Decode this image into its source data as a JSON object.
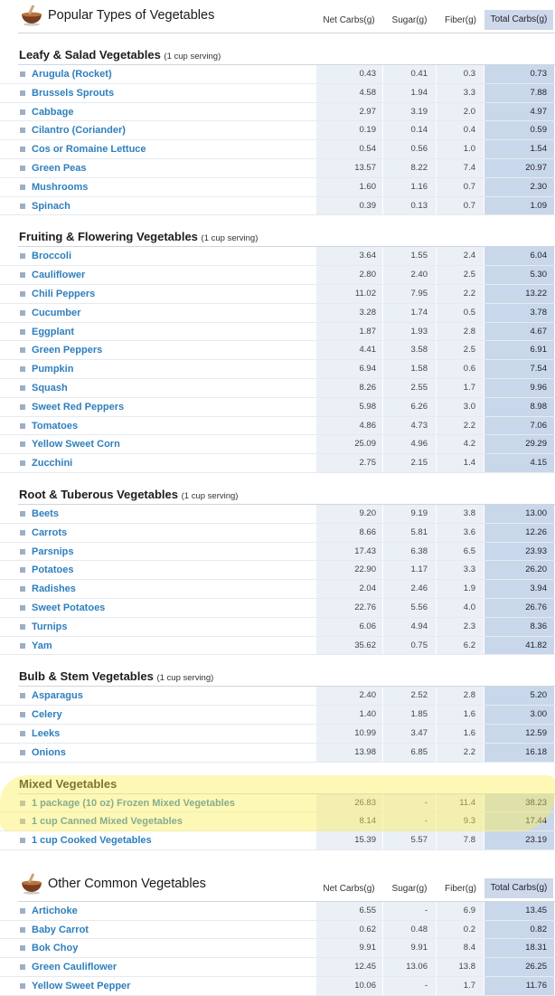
{
  "tables": [
    {
      "title": "Popular Types of Vegetables",
      "columns": [
        "Net Carbs(g)",
        "Sugar(g)",
        "Fiber(g)",
        "Total Carbs(g)"
      ],
      "sections": [
        {
          "title": "Leafy & Salad Vegetables",
          "subtitle": "(1 cup serving)",
          "rows": [
            {
              "name": "Arugula (Rocket)",
              "net": "0.43",
              "sugar": "0.41",
              "fiber": "0.3",
              "total": "0.73"
            },
            {
              "name": "Brussels Sprouts",
              "net": "4.58",
              "sugar": "1.94",
              "fiber": "3.3",
              "total": "7.88"
            },
            {
              "name": "Cabbage",
              "net": "2.97",
              "sugar": "3.19",
              "fiber": "2.0",
              "total": "4.97"
            },
            {
              "name": "Cilantro (Coriander)",
              "net": "0.19",
              "sugar": "0.14",
              "fiber": "0.4",
              "total": "0.59"
            },
            {
              "name": "Cos or Romaine Lettuce",
              "net": "0.54",
              "sugar": "0.56",
              "fiber": "1.0",
              "total": "1.54"
            },
            {
              "name": "Green Peas",
              "net": "13.57",
              "sugar": "8.22",
              "fiber": "7.4",
              "total": "20.97"
            },
            {
              "name": "Mushrooms",
              "net": "1.60",
              "sugar": "1.16",
              "fiber": "0.7",
              "total": "2.30"
            },
            {
              "name": "Spinach",
              "net": "0.39",
              "sugar": "0.13",
              "fiber": "0.7",
              "total": "1.09"
            }
          ]
        },
        {
          "title": "Fruiting & Flowering Vegetables",
          "subtitle": "(1 cup serving)",
          "rows": [
            {
              "name": "Broccoli",
              "net": "3.64",
              "sugar": "1.55",
              "fiber": "2.4",
              "total": "6.04"
            },
            {
              "name": "Cauliflower",
              "net": "2.80",
              "sugar": "2.40",
              "fiber": "2.5",
              "total": "5.30"
            },
            {
              "name": "Chili Peppers",
              "net": "11.02",
              "sugar": "7.95",
              "fiber": "2.2",
              "total": "13.22"
            },
            {
              "name": "Cucumber",
              "net": "3.28",
              "sugar": "1.74",
              "fiber": "0.5",
              "total": "3.78"
            },
            {
              "name": "Eggplant",
              "net": "1.87",
              "sugar": "1.93",
              "fiber": "2.8",
              "total": "4.67"
            },
            {
              "name": "Green Peppers",
              "net": "4.41",
              "sugar": "3.58",
              "fiber": "2.5",
              "total": "6.91"
            },
            {
              "name": "Pumpkin",
              "net": "6.94",
              "sugar": "1.58",
              "fiber": "0.6",
              "total": "7.54"
            },
            {
              "name": "Squash",
              "net": "8.26",
              "sugar": "2.55",
              "fiber": "1.7",
              "total": "9.96"
            },
            {
              "name": "Sweet Red Peppers",
              "net": "5.98",
              "sugar": "6.26",
              "fiber": "3.0",
              "total": "8.98"
            },
            {
              "name": "Tomatoes",
              "net": "4.86",
              "sugar": "4.73",
              "fiber": "2.2",
              "total": "7.06"
            },
            {
              "name": "Yellow Sweet Corn",
              "net": "25.09",
              "sugar": "4.96",
              "fiber": "4.2",
              "total": "29.29"
            },
            {
              "name": "Zucchini",
              "net": "2.75",
              "sugar": "2.15",
              "fiber": "1.4",
              "total": "4.15"
            }
          ]
        },
        {
          "title": "Root & Tuberous Vegetables",
          "subtitle": "(1 cup serving)",
          "rows": [
            {
              "name": "Beets",
              "net": "9.20",
              "sugar": "9.19",
              "fiber": "3.8",
              "total": "13.00"
            },
            {
              "name": "Carrots",
              "net": "8.66",
              "sugar": "5.81",
              "fiber": "3.6",
              "total": "12.26"
            },
            {
              "name": "Parsnips",
              "net": "17.43",
              "sugar": "6.38",
              "fiber": "6.5",
              "total": "23.93"
            },
            {
              "name": "Potatoes",
              "net": "22.90",
              "sugar": "1.17",
              "fiber": "3.3",
              "total": "26.20"
            },
            {
              "name": "Radishes",
              "net": "2.04",
              "sugar": "2.46",
              "fiber": "1.9",
              "total": "3.94"
            },
            {
              "name": "Sweet Potatoes",
              "net": "22.76",
              "sugar": "5.56",
              "fiber": "4.0",
              "total": "26.76"
            },
            {
              "name": "Turnips",
              "net": "6.06",
              "sugar": "4.94",
              "fiber": "2.3",
              "total": "8.36"
            },
            {
              "name": "Yam",
              "net": "35.62",
              "sugar": "0.75",
              "fiber": "6.2",
              "total": "41.82"
            }
          ]
        },
        {
          "title": "Bulb & Stem Vegetables",
          "subtitle": "(1 cup serving)",
          "rows": [
            {
              "name": "Asparagus",
              "net": "2.40",
              "sugar": "2.52",
              "fiber": "2.8",
              "total": "5.20"
            },
            {
              "name": "Celery",
              "net": "1.40",
              "sugar": "1.85",
              "fiber": "1.6",
              "total": "3.00"
            },
            {
              "name": "Leeks",
              "net": "10.99",
              "sugar": "3.47",
              "fiber": "1.6",
              "total": "12.59"
            },
            {
              "name": "Onions",
              "net": "13.98",
              "sugar": "6.85",
              "fiber": "2.2",
              "total": "16.18"
            }
          ]
        },
        {
          "title": "Mixed Vegetables",
          "subtitle": "",
          "rows": [
            {
              "name": "1 package (10 oz) Frozen Mixed Vegetables",
              "net": "26.83",
              "sugar": "-",
              "fiber": "11.4",
              "total": "38.23"
            },
            {
              "name": "1 cup Canned Mixed Vegetables",
              "net": "8.14",
              "sugar": "-",
              "fiber": "9.3",
              "total": "17.44"
            },
            {
              "name": "1 cup Cooked Vegetables",
              "net": "15.39",
              "sugar": "5.57",
              "fiber": "7.8",
              "total": "23.19"
            }
          ]
        }
      ]
    },
    {
      "title": "Other Common Vegetables",
      "columns": [
        "Net Carbs(g)",
        "Sugar(g)",
        "Fiber(g)",
        "Total Carbs(g)"
      ],
      "sections": [
        {
          "title": "",
          "subtitle": "",
          "rows": [
            {
              "name": "Artichoke",
              "net": "6.55",
              "sugar": "-",
              "fiber": "6.9",
              "total": "13.45"
            },
            {
              "name": "Baby Carrot",
              "net": "0.62",
              "sugar": "0.48",
              "fiber": "0.2",
              "total": "0.82"
            },
            {
              "name": "Bok Choy",
              "net": "9.91",
              "sugar": "9.91",
              "fiber": "8.4",
              "total": "18.31"
            },
            {
              "name": "Green Cauliflower",
              "net": "12.45",
              "sugar": "13.06",
              "fiber": "13.8",
              "total": "26.25"
            },
            {
              "name": "Yellow Sweet Pepper",
              "net": "10.06",
              "sugar": "-",
              "fiber": "1.7",
              "total": "11.76"
            }
          ]
        }
      ]
    }
  ],
  "colors": {
    "link": "#2e7fbd",
    "cell_bg": "#eaf0f6",
    "total_bg": "#c9d7ea",
    "highlight": "#fcee50"
  }
}
